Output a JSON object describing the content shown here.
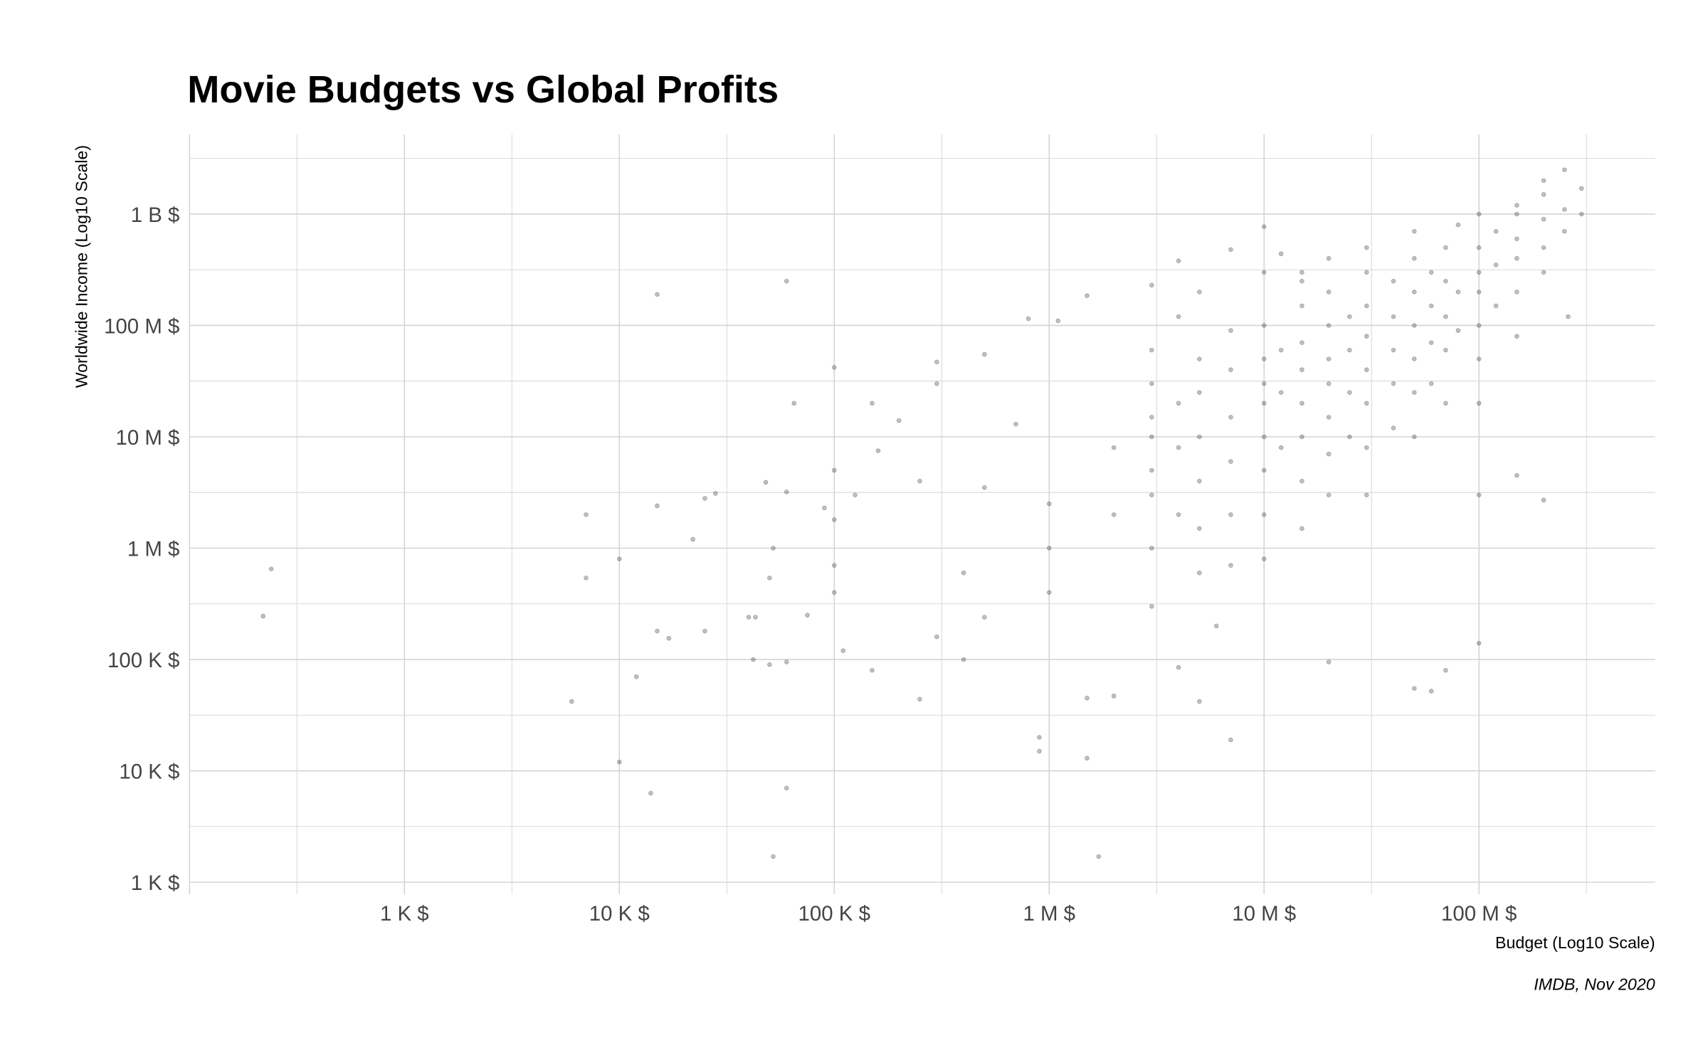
{
  "chart_data": {
    "type": "scatter",
    "title": "Movie Budgets vs Global Profits",
    "xlabel": "Budget (Log10 Scale)",
    "ylabel": "Worldwide Income (Log10 Scale)",
    "caption": "IMDB, Nov 2020",
    "x_scale": "log10",
    "y_scale": "log10",
    "xlim": [
      100,
      660000000
    ],
    "ylim": [
      780,
      5200000000
    ],
    "grid": true,
    "point_color": "#000000",
    "point_opacity": 0.25,
    "x_ticks": [
      {
        "value": 1000,
        "label": "1 K $"
      },
      {
        "value": 10000,
        "label": "10 K $"
      },
      {
        "value": 100000,
        "label": "100 K $"
      },
      {
        "value": 1000000,
        "label": "1 M $"
      },
      {
        "value": 10000000,
        "label": "10 M $"
      },
      {
        "value": 100000000,
        "label": "100 M $"
      }
    ],
    "y_ticks": [
      {
        "value": 1000,
        "label": "1 K $"
      },
      {
        "value": 10000,
        "label": "10 K $"
      },
      {
        "value": 100000,
        "label": "100 K $"
      },
      {
        "value": 1000000,
        "label": "1 M $"
      },
      {
        "value": 10000000,
        "label": "10 M $"
      },
      {
        "value": 100000000,
        "label": "100 M $"
      },
      {
        "value": 1000000000,
        "label": "1 B $"
      }
    ],
    "points": [
      [
        220,
        245000
      ],
      [
        240,
        650000
      ],
      [
        10000,
        800000
      ],
      [
        7000,
        2000000
      ],
      [
        7000,
        540000
      ],
      [
        6000,
        42000
      ],
      [
        10000,
        12000
      ],
      [
        14000,
        6300
      ],
      [
        15000,
        190000000
      ],
      [
        15000,
        2400000
      ],
      [
        15000,
        180000
      ],
      [
        17000,
        155000
      ],
      [
        12000,
        70000
      ],
      [
        22000,
        1200000
      ],
      [
        25000,
        2800000
      ],
      [
        25000,
        180000
      ],
      [
        28000,
        3100000
      ],
      [
        40000,
        240000
      ],
      [
        43000,
        240000
      ],
      [
        42000,
        100000
      ],
      [
        48000,
        3900000
      ],
      [
        52000,
        1000000
      ],
      [
        52000,
        1700
      ],
      [
        50000,
        90000
      ],
      [
        50000,
        540000
      ],
      [
        60000,
        250000000
      ],
      [
        60000,
        7000
      ],
      [
        60000,
        3200000
      ],
      [
        60000,
        95000
      ],
      [
        65000,
        20000000
      ],
      [
        75000,
        250000
      ],
      [
        90000,
        2300000
      ],
      [
        100000,
        42000000
      ],
      [
        100000,
        5000000
      ],
      [
        100000,
        1800000
      ],
      [
        100000,
        700000
      ],
      [
        100000,
        400000
      ],
      [
        110000,
        120000
      ],
      [
        125000,
        3000000
      ],
      [
        150000,
        20000000
      ],
      [
        150000,
        80000
      ],
      [
        160000,
        7500000
      ],
      [
        200000,
        14000000
      ],
      [
        250000,
        44000
      ],
      [
        250000,
        4000000
      ],
      [
        300000,
        47000000
      ],
      [
        300000,
        160000
      ],
      [
        300000,
        30000000
      ],
      [
        400000,
        100000
      ],
      [
        400000,
        600000
      ],
      [
        500000,
        55000000
      ],
      [
        500000,
        3500000
      ],
      [
        500000,
        240000
      ],
      [
        700000,
        13000000
      ],
      [
        800000,
        115000000
      ],
      [
        900000,
        15000
      ],
      [
        900000,
        20000
      ],
      [
        1000000,
        2500000
      ],
      [
        1000000,
        1000000
      ],
      [
        1000000,
        400000
      ],
      [
        1100000,
        110000000
      ],
      [
        1500000,
        185000000
      ],
      [
        1500000,
        13000
      ],
      [
        1500000,
        45000
      ],
      [
        1700000,
        1700
      ],
      [
        2000000,
        47000
      ],
      [
        2000000,
        8000000
      ],
      [
        2000000,
        2000000
      ],
      [
        3000000,
        230000000
      ],
      [
        4000000,
        380000000
      ],
      [
        4000000,
        85000
      ],
      [
        5000000,
        42000
      ],
      [
        6000000,
        200000
      ],
      [
        7000000,
        19000
      ],
      [
        7000000,
        480000000
      ],
      [
        10000000,
        770000000
      ],
      [
        12000000,
        440000000
      ],
      [
        15000000,
        300000000
      ],
      [
        20000000,
        95000
      ],
      [
        50000000,
        55000
      ],
      [
        60000000,
        52000
      ],
      [
        70000000,
        80000
      ],
      [
        100000000,
        140000
      ],
      [
        100000000,
        3000000
      ],
      [
        150000000,
        4500000
      ],
      [
        200000000,
        2700000
      ],
      [
        260000000,
        120000000
      ],
      [
        300000000,
        1700000000
      ],
      [
        300000000,
        1000000000
      ],
      [
        250000000,
        2500000000
      ],
      [
        200000000,
        2000000000
      ],
      [
        150000000,
        1200000000
      ],
      [
        3000000,
        30000000
      ],
      [
        3000000,
        10000000
      ],
      [
        3000000,
        3000000
      ],
      [
        3000000,
        1000000
      ],
      [
        3000000,
        300000
      ],
      [
        3000000,
        15000000
      ],
      [
        3000000,
        5000000
      ],
      [
        3000000,
        60000000
      ],
      [
        4000000,
        20000000
      ],
      [
        4000000,
        8000000
      ],
      [
        4000000,
        2000000
      ],
      [
        4000000,
        120000000
      ],
      [
        5000000,
        50000000
      ],
      [
        5000000,
        25000000
      ],
      [
        5000000,
        10000000
      ],
      [
        5000000,
        4000000
      ],
      [
        5000000,
        1500000
      ],
      [
        5000000,
        600000
      ],
      [
        5000000,
        200000000
      ],
      [
        7000000,
        40000000
      ],
      [
        7000000,
        15000000
      ],
      [
        7000000,
        6000000
      ],
      [
        7000000,
        2000000
      ],
      [
        7000000,
        90000000
      ],
      [
        7000000,
        700000
      ],
      [
        10000000,
        100000000
      ],
      [
        10000000,
        50000000
      ],
      [
        10000000,
        30000000
      ],
      [
        10000000,
        20000000
      ],
      [
        10000000,
        10000000
      ],
      [
        10000000,
        5000000
      ],
      [
        10000000,
        2000000
      ],
      [
        10000000,
        800000
      ],
      [
        10000000,
        300000000
      ],
      [
        12000000,
        60000000
      ],
      [
        12000000,
        25000000
      ],
      [
        12000000,
        8000000
      ],
      [
        15000000,
        150000000
      ],
      [
        15000000,
        70000000
      ],
      [
        15000000,
        40000000
      ],
      [
        15000000,
        20000000
      ],
      [
        15000000,
        10000000
      ],
      [
        15000000,
        4000000
      ],
      [
        15000000,
        1500000
      ],
      [
        15000000,
        250000000
      ],
      [
        20000000,
        200000000
      ],
      [
        20000000,
        100000000
      ],
      [
        20000000,
        50000000
      ],
      [
        20000000,
        30000000
      ],
      [
        20000000,
        15000000
      ],
      [
        20000000,
        7000000
      ],
      [
        20000000,
        3000000
      ],
      [
        20000000,
        400000000
      ],
      [
        25000000,
        120000000
      ],
      [
        25000000,
        60000000
      ],
      [
        25000000,
        25000000
      ],
      [
        25000000,
        10000000
      ],
      [
        30000000,
        300000000
      ],
      [
        30000000,
        150000000
      ],
      [
        30000000,
        80000000
      ],
      [
        30000000,
        40000000
      ],
      [
        30000000,
        20000000
      ],
      [
        30000000,
        8000000
      ],
      [
        30000000,
        3000000
      ],
      [
        30000000,
        500000000
      ],
      [
        40000000,
        250000000
      ],
      [
        40000000,
        120000000
      ],
      [
        40000000,
        60000000
      ],
      [
        40000000,
        30000000
      ],
      [
        40000000,
        12000000
      ],
      [
        50000000,
        400000000
      ],
      [
        50000000,
        200000000
      ],
      [
        50000000,
        100000000
      ],
      [
        50000000,
        50000000
      ],
      [
        50000000,
        25000000
      ],
      [
        50000000,
        10000000
      ],
      [
        50000000,
        700000000
      ],
      [
        60000000,
        300000000
      ],
      [
        60000000,
        150000000
      ],
      [
        60000000,
        70000000
      ],
      [
        60000000,
        30000000
      ],
      [
        70000000,
        500000000
      ],
      [
        70000000,
        250000000
      ],
      [
        70000000,
        120000000
      ],
      [
        70000000,
        60000000
      ],
      [
        70000000,
        20000000
      ],
      [
        80000000,
        800000000
      ],
      [
        80000000,
        200000000
      ],
      [
        80000000,
        90000000
      ],
      [
        100000000,
        1000000000
      ],
      [
        100000000,
        500000000
      ],
      [
        100000000,
        300000000
      ],
      [
        100000000,
        200000000
      ],
      [
        100000000,
        100000000
      ],
      [
        100000000,
        50000000
      ],
      [
        100000000,
        20000000
      ],
      [
        120000000,
        700000000
      ],
      [
        120000000,
        350000000
      ],
      [
        120000000,
        150000000
      ],
      [
        150000000,
        1000000000
      ],
      [
        150000000,
        600000000
      ],
      [
        150000000,
        400000000
      ],
      [
        150000000,
        200000000
      ],
      [
        150000000,
        80000000
      ],
      [
        200000000,
        1500000000
      ],
      [
        200000000,
        900000000
      ],
      [
        200000000,
        500000000
      ],
      [
        200000000,
        300000000
      ],
      [
        250000000,
        1100000000
      ],
      [
        250000000,
        700000000
      ]
    ]
  }
}
